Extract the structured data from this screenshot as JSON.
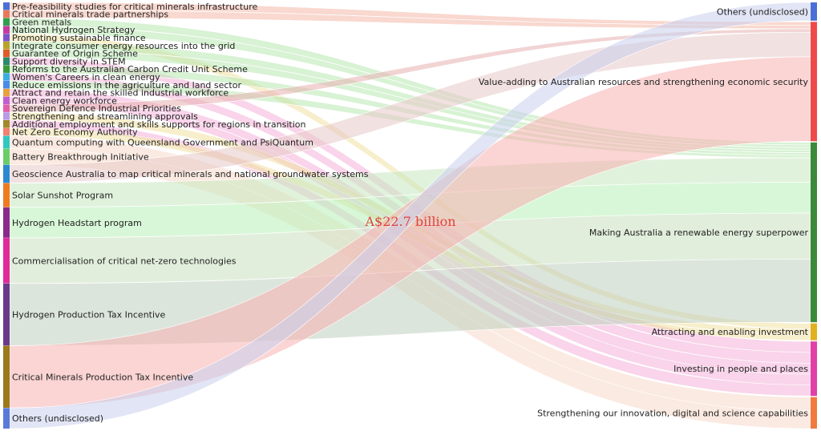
{
  "chart_data": {
    "type": "sankey",
    "center_label": "A$22.7 billion",
    "sources": [
      {
        "name": "Pre-feasibility studies for critical minerals infrastructure",
        "value": 0.08,
        "color": "#4a6fd6"
      },
      {
        "name": "Critical minerals trade partnerships",
        "value": 0.08,
        "color": "#e8785a"
      },
      {
        "name": "Green metals",
        "value": 0.08,
        "color": "#2f9e4d"
      },
      {
        "name": "National Hydrogen Strategy",
        "value": 0.08,
        "color": "#c43aa0"
      },
      {
        "name": "Promoting sustainable finance",
        "value": 0.08,
        "color": "#7a55c8"
      },
      {
        "name": "Integrate consumer energy resources into the grid",
        "value": 0.08,
        "color": "#b8a22a"
      },
      {
        "name": "Guarantee of Origin Scheme",
        "value": 0.08,
        "color": "#e05a2a"
      },
      {
        "name": "Support diversity in STEM",
        "value": 0.08,
        "color": "#2a8a6a"
      },
      {
        "name": "Reforms to the Australian Carbon Credit Unit Scheme",
        "value": 0.08,
        "color": "#3a9a3a"
      },
      {
        "name": "Women's Careers in clean energy",
        "value": 0.08,
        "color": "#3aaee0"
      },
      {
        "name": "Reduce emissions in the agriculture and land sector",
        "value": 0.08,
        "color": "#4a8ae8"
      },
      {
        "name": "Attract and retain the skilled industrial workforce",
        "value": 0.08,
        "color": "#e8a040"
      },
      {
        "name": "Clean energy workforce",
        "value": 0.08,
        "color": "#c060d0"
      },
      {
        "name": "Sovereign Defence Industrial Priorities",
        "value": 0.08,
        "color": "#e060a8"
      },
      {
        "name": "Strengthening and streamlining approvals",
        "value": 0.08,
        "color": "#b89ae8"
      },
      {
        "name": "Additional employment and skills supports for regions in transition",
        "value": 0.08,
        "color": "#a08a2a"
      },
      {
        "name": "Net Zero Economy Authority",
        "value": 0.08,
        "color": "#f08070"
      },
      {
        "name": "Quantum computing with Queensland Government and PsiQuantum",
        "value": 0.4,
        "color": "#30c8c0"
      },
      {
        "name": "Battery Breakthrough Initiative",
        "value": 0.5,
        "color": "#6acd6a"
      },
      {
        "name": "Geoscience Australia to map critical minerals and national groundwater systems",
        "value": 0.57,
        "color": "#2a8ad0"
      },
      {
        "name": "Solar Sunshot Program",
        "value": 0.76,
        "color": "#f07a20"
      },
      {
        "name": "Hydrogen Headstart program",
        "value": 0.96,
        "color": "#8a2a8a"
      },
      {
        "name": "Commercialisation of critical net-zero technologies",
        "value": 1.43,
        "color": "#e02a9a"
      },
      {
        "name": "Hydrogen Production Tax Incentive",
        "value": 1.96,
        "color": "#6a3a8a"
      },
      {
        "name": "Critical Minerals Production Tax Incentive",
        "value": 1.96,
        "color": "#9a7a1a"
      },
      {
        "name": "Others (undisclosed)",
        "value": 0.65,
        "color": "#5a7ad8"
      }
    ],
    "targets": [
      {
        "name": "Others (undisclosed)",
        "value": 0.65,
        "color": "#4a6fd6"
      },
      {
        "name": "Value-adding to Australian resources and strengthening economic security",
        "value": 4.25,
        "color": "#ee4a4a"
      },
      {
        "name": "Making Australia a renewable energy superpower",
        "value": 6.4,
        "color": "#3a8a3a"
      },
      {
        "name": "Attracting and enabling investment",
        "value": 0.6,
        "color": "#e0b020"
      },
      {
        "name": "Investing in people and places",
        "value": 1.94,
        "color": "#e040a8"
      },
      {
        "name": "Strengthening our innovation, digital and science capabilities",
        "value": 1.12,
        "color": "#f07a40"
      }
    ],
    "links": [
      {
        "source": 0,
        "target": 1,
        "value": 0.08,
        "color": "#f4b8a8"
      },
      {
        "source": 1,
        "target": 1,
        "value": 0.08,
        "color": "#f4b8a8"
      },
      {
        "source": 2,
        "target": 2,
        "value": 0.08,
        "color": "#b8e8b0"
      },
      {
        "source": 3,
        "target": 2,
        "value": 0.08,
        "color": "#b8e8b0"
      },
      {
        "source": 4,
        "target": 3,
        "value": 0.08,
        "color": "#f0e0a0"
      },
      {
        "source": 5,
        "target": 2,
        "value": 0.08,
        "color": "#b8e8b0"
      },
      {
        "source": 6,
        "target": 2,
        "value": 0.08,
        "color": "#b8e8b0"
      },
      {
        "source": 7,
        "target": 4,
        "value": 0.08,
        "color": "#f4b0d8"
      },
      {
        "source": 8,
        "target": 2,
        "value": 0.08,
        "color": "#b8e8b0"
      },
      {
        "source": 9,
        "target": 4,
        "value": 0.08,
        "color": "#f4b0d8"
      },
      {
        "source": 10,
        "target": 2,
        "value": 0.08,
        "color": "#b8e8b0"
      },
      {
        "source": 11,
        "target": 4,
        "value": 0.08,
        "color": "#f4b0d8"
      },
      {
        "source": 12,
        "target": 4,
        "value": 0.08,
        "color": "#f4b0d8"
      },
      {
        "source": 13,
        "target": 1,
        "value": 0.08,
        "color": "#e8b0b0"
      },
      {
        "source": 14,
        "target": 3,
        "value": 0.08,
        "color": "#f0e0a0"
      },
      {
        "source": 15,
        "target": 4,
        "value": 0.08,
        "color": "#f4b0d8"
      },
      {
        "source": 16,
        "target": 3,
        "value": 0.08,
        "color": "#f0e0a0"
      },
      {
        "source": 17,
        "target": 5,
        "value": 0.4,
        "color": "#f8d8c8"
      },
      {
        "source": 18,
        "target": 5,
        "value": 0.5,
        "color": "#f8d8c8"
      },
      {
        "source": 19,
        "target": 1,
        "value": 0.57,
        "color": "#e8c8c8"
      },
      {
        "source": 20,
        "target": 2,
        "value": 0.76,
        "color": "#c8e8c0"
      },
      {
        "source": 21,
        "target": 2,
        "value": 0.96,
        "color": "#b8f0b8"
      },
      {
        "source": 22,
        "target": 2,
        "value": 1.43,
        "color": "#c8e0c0"
      },
      {
        "source": 23,
        "target": 2,
        "value": 1.96,
        "color": "#c0d0c0"
      },
      {
        "source": 24,
        "target": 1,
        "value": 1.96,
        "color": "#f8b0b0"
      },
      {
        "source": 25,
        "target": 0,
        "value": 0.65,
        "color": "#c8d0ec"
      }
    ]
  }
}
